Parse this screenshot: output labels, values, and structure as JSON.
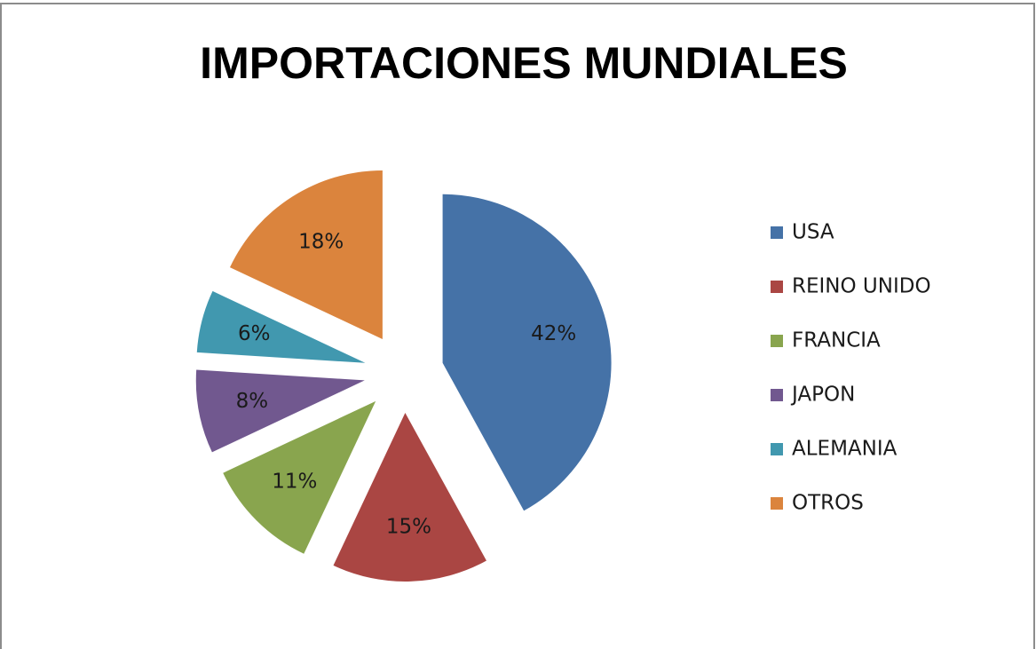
{
  "chart_data": {
    "type": "pie",
    "title": "IMPORTACIONES MUNDIALES",
    "categories": [
      "USA",
      "REINO UNIDO",
      "FRANCIA",
      "JAPON",
      "ALEMANIA",
      "OTROS"
    ],
    "values": [
      42,
      15,
      11,
      8,
      6,
      18
    ],
    "value_labels": [
      "42%",
      "15%",
      "11%",
      "8%",
      "6%",
      "18%"
    ],
    "colors": [
      "#4572a7",
      "#aa4643",
      "#89a54e",
      "#71588f",
      "#4198af",
      "#db843d"
    ],
    "legend": "right"
  }
}
